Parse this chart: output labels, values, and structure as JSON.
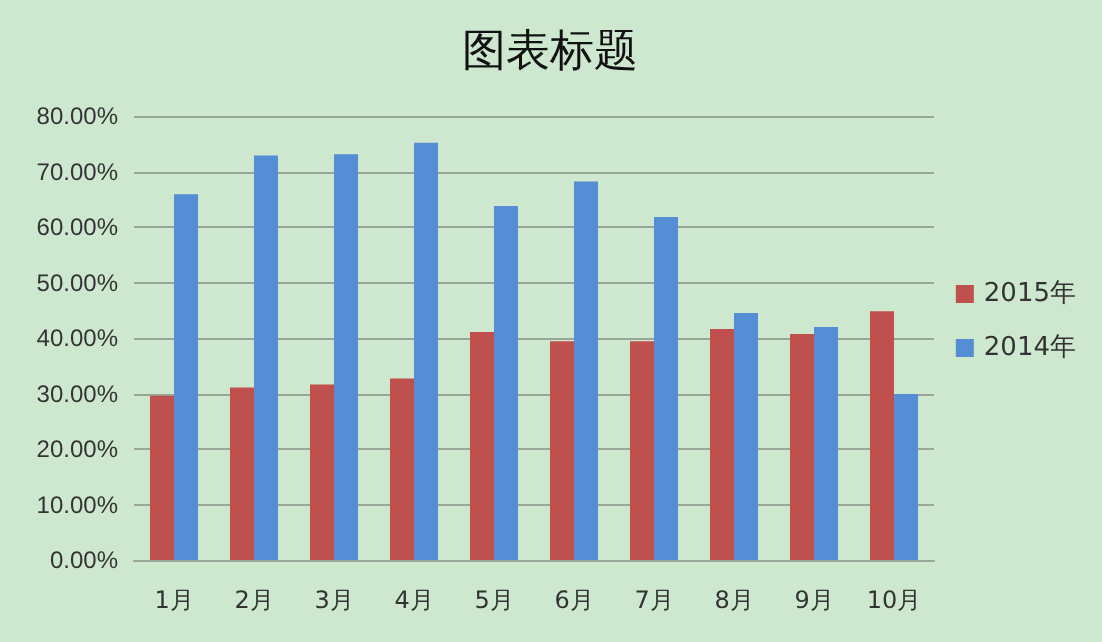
{
  "chart_data": {
    "type": "bar",
    "title": "图表标题",
    "categories": [
      "1月",
      "2月",
      "3月",
      "4月",
      "5月",
      "6月",
      "7月",
      "8月",
      "9月",
      "10月"
    ],
    "series": [
      {
        "name": "2015年",
        "color": "#c0504d",
        "values": [
          29.6,
          31.1,
          31.6,
          32.7,
          41.1,
          39.4,
          39.4,
          41.6,
          40.7,
          44.8
        ]
      },
      {
        "name": "2014年",
        "color": "#558ed5",
        "values": [
          65.9,
          72.9,
          73.1,
          75.2,
          63.8,
          68.2,
          61.8,
          44.5,
          42.0,
          29.9
        ]
      }
    ],
    "ylim": [
      0,
      80
    ],
    "yticks": [
      {
        "value": 0,
        "label": "0.00%"
      },
      {
        "value": 10,
        "label": "10.00%"
      },
      {
        "value": 20,
        "label": "20.00%"
      },
      {
        "value": 30,
        "label": "30.00%"
      },
      {
        "value": 40,
        "label": "40.00%"
      },
      {
        "value": 50,
        "label": "50.00%"
      },
      {
        "value": 60,
        "label": "60.00%"
      },
      {
        "value": 70,
        "label": "70.00%"
      },
      {
        "value": 80,
        "label": "80.00%"
      }
    ],
    "grid": "y",
    "legend": "right"
  }
}
